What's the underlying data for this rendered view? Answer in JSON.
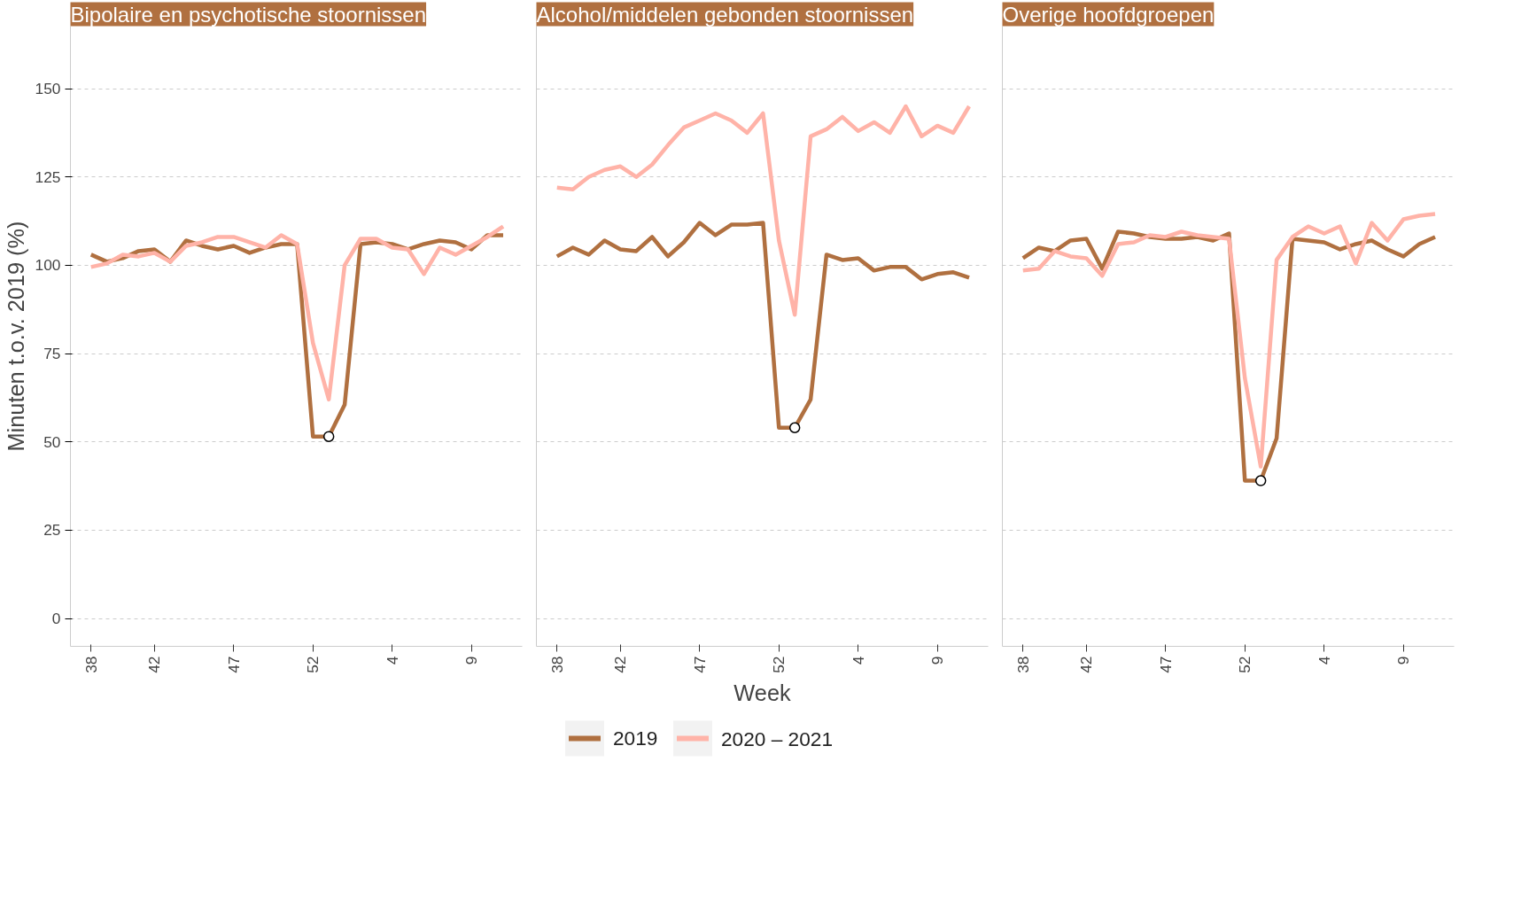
{
  "chart_data": [
    {
      "type": "line",
      "title": "Bipolaire en psychotische stoornissen",
      "ylabel": "Minuten t.o.v. 2019 (%)",
      "categories": [
        "38",
        null,
        null,
        null,
        "42",
        null,
        null,
        null,
        null,
        "47",
        null,
        null,
        null,
        null,
        "52",
        null,
        null,
        null,
        null,
        "4",
        null,
        null,
        null,
        null,
        "9",
        null,
        null
      ],
      "series": [
        {
          "color": "#b07040",
          "values": [
            103,
            101,
            102,
            104,
            104.5,
            101,
            107,
            105.5,
            104.5,
            105.5,
            103.5,
            105,
            106,
            106,
            51.5,
            51.5,
            60.5,
            106,
            106.5,
            106,
            104.5,
            106,
            107,
            106.5,
            104.5,
            108.5,
            108.5
          ]
        },
        {
          "color": "#ffb3a8",
          "values": [
            99.5,
            100.5,
            103,
            102.5,
            103.5,
            101,
            105.5,
            106.5,
            108,
            108,
            106.5,
            105,
            108.5,
            106,
            78,
            62,
            100,
            107.5,
            107.5,
            105,
            104.5,
            97.5,
            105,
            103,
            105.5,
            108,
            111
          ]
        },
        {
          "type": "scatter",
          "color": "#ffffff",
          "values": [
            null,
            null,
            null,
            null,
            null,
            null,
            null,
            null,
            null,
            null,
            null,
            null,
            null,
            null,
            null,
            51.5,
            null,
            null,
            null,
            null,
            null,
            null,
            null,
            null,
            null,
            null,
            null
          ]
        }
      ],
      "ylim": [
        -7.9,
        167.7
      ],
      "yticks": [
        0,
        25,
        50,
        75,
        100,
        125,
        150
      ],
      "grid": "y",
      "line_style": "solid"
    },
    {
      "type": "line",
      "title": "Alcohol/middelen gebonden stoornissen",
      "xlabel": "Week",
      "categories": [
        "38",
        null,
        null,
        null,
        "42",
        null,
        null,
        null,
        null,
        "47",
        null,
        null,
        null,
        null,
        "52",
        null,
        null,
        null,
        null,
        "4",
        null,
        null,
        null,
        null,
        "9",
        null,
        null
      ],
      "series": [
        {
          "name": "2019",
          "color": "#b07040",
          "values": [
            102.5,
            105,
            103,
            107,
            104.5,
            104,
            108,
            102.5,
            106.5,
            112,
            108.5,
            111.5,
            111.5,
            112,
            54,
            54,
            62,
            103,
            101.5,
            102,
            98.5,
            99.5,
            99.5,
            96,
            97.5,
            98,
            96.5
          ]
        },
        {
          "name": "2020 – 2021",
          "color": "#ffb3a8",
          "values": [
            122,
            121.5,
            125,
            127,
            128,
            125,
            128.5,
            134,
            139,
            141,
            143,
            141,
            137.5,
            143,
            107,
            86,
            136.5,
            138.5,
            142,
            138,
            140.5,
            137.5,
            145,
            136.5,
            139.5,
            137.5,
            145
          ]
        },
        {
          "type": "scatter",
          "color": "#ffffff",
          "values": [
            null,
            null,
            null,
            null,
            null,
            null,
            null,
            null,
            null,
            null,
            null,
            null,
            null,
            null,
            null,
            54,
            null,
            null,
            null,
            null,
            null,
            null,
            null,
            null,
            null,
            null,
            null
          ]
        }
      ],
      "ylim": [
        -7.9,
        167.7
      ],
      "yticks": [
        0,
        25,
        50,
        75,
        100,
        125,
        150
      ],
      "grid": "y",
      "line_style": "solid",
      "tick_labels": "x",
      "legend": "bottom"
    },
    {
      "type": "line",
      "title": "Overige hoofdgroepen",
      "categories": [
        "38",
        null,
        null,
        null,
        "42",
        null,
        null,
        null,
        null,
        "47",
        null,
        null,
        null,
        null,
        "52",
        null,
        null,
        null,
        null,
        "4",
        null,
        null,
        null,
        null,
        "9",
        null,
        null
      ],
      "series": [
        {
          "color": "#b07040",
          "values": [
            102,
            105,
            104,
            107,
            107.5,
            99,
            109.5,
            109,
            108,
            107.5,
            107.5,
            108,
            107,
            109,
            39,
            39,
            51,
            107.5,
            107,
            106.5,
            104.5,
            106,
            107,
            104.5,
            102.5,
            106,
            108
          ]
        },
        {
          "color": "#ffb3a8",
          "values": [
            98.5,
            99,
            104,
            102.5,
            102,
            97,
            106,
            106.5,
            108.5,
            108,
            109.5,
            108.5,
            108,
            107.5,
            68,
            43,
            101.5,
            108,
            111,
            109,
            111,
            100.5,
            112,
            107,
            113,
            114,
            114.5
          ]
        },
        {
          "type": "scatter",
          "color": "#ffffff",
          "values": [
            null,
            null,
            null,
            null,
            null,
            null,
            null,
            null,
            null,
            null,
            null,
            null,
            null,
            null,
            null,
            39,
            null,
            null,
            null,
            null,
            null,
            null,
            null,
            null,
            null,
            null,
            null
          ]
        }
      ],
      "ylim": [
        -7.9,
        167.7
      ],
      "yticks": [
        0,
        25,
        50,
        75,
        100,
        125,
        150
      ],
      "grid": "y",
      "line_style": "solid",
      "tick_labels": "x"
    }
  ]
}
